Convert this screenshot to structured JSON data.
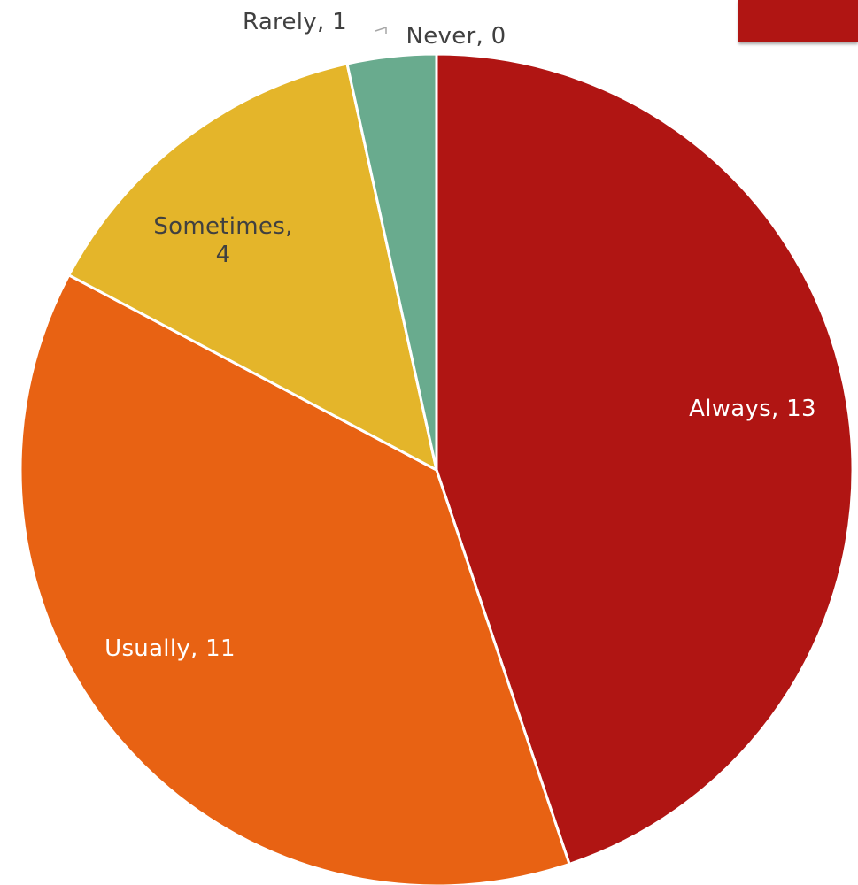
{
  "chart_data": {
    "type": "pie",
    "title": "",
    "slices": [
      {
        "label": "Always, 13",
        "category": "Always",
        "value": 13,
        "color": "#b01513"
      },
      {
        "label": "Usually, 11",
        "category": "Usually",
        "value": 11,
        "color": "#e86213"
      },
      {
        "label": "Sometimes, 4",
        "category": "Sometimes",
        "value": 4,
        "color": "#e4b52a"
      },
      {
        "label": "Rarely, 1",
        "category": "Rarely",
        "value": 1,
        "color": "#69ab8e"
      },
      {
        "label": "Never, 0",
        "category": "Never",
        "value": 0,
        "color": "#5b9bd5"
      }
    ],
    "label_colors": {
      "Always": "#ffffff",
      "Usually": "#ffffff",
      "Sometimes": "#404040",
      "Rarely": "#404040",
      "Never": "#404040"
    },
    "legend": "none"
  },
  "decoration": {
    "corner_color": "#b01513"
  }
}
